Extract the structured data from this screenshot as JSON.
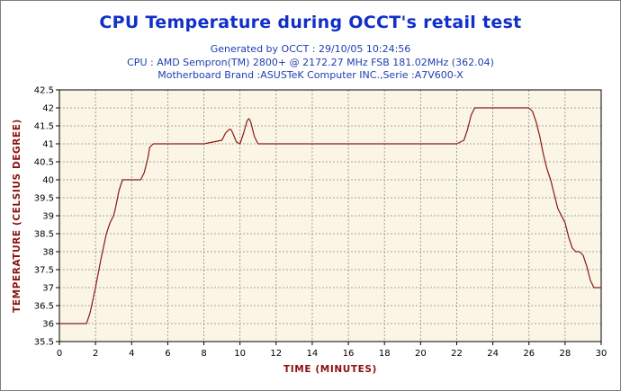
{
  "header": {
    "title": "CPU Temperature during OCCT's retail test",
    "generated": "Generated by OCCT : 29/10/05 10:24:56",
    "cpu": "CPU : AMD Sempron(TM) 2800+ @ 2172.27 MHz FSB 181.02MHz (362.04)",
    "motherboard": "Motherboard Brand :ASUSTeK Computer INC.,Serie :A7V600-X"
  },
  "colors": {
    "plot_background": "#faf5e4",
    "grid": "#8a8a8a",
    "line": "#8b1a1a",
    "title": "#1030c8",
    "axis_label": "#8b1010"
  },
  "chart_data": {
    "type": "line",
    "title": "CPU Temperature during OCCT's retail test",
    "xlabel": "TIME (MINUTES)",
    "ylabel": "TEMPERATURE (CELSIUS DEGREE)",
    "xlim": [
      0,
      30
    ],
    "ylim": [
      35.5,
      42.5
    ],
    "xticks": [
      0,
      2,
      4,
      6,
      8,
      10,
      12,
      14,
      16,
      18,
      20,
      22,
      24,
      26,
      28,
      30
    ],
    "yticks": [
      35.5,
      36,
      36.5,
      37,
      37.5,
      38,
      38.5,
      39,
      39.5,
      40,
      40.5,
      41,
      41.5,
      42,
      42.5
    ],
    "grid": true,
    "grid_style": "dashed",
    "series": [
      {
        "name": "",
        "x": [
          0,
          1.5,
          1.7,
          2.0,
          2.3,
          2.6,
          2.8,
          3.0,
          3.1,
          3.3,
          3.5,
          3.8,
          4.5,
          4.7,
          4.9,
          5.0,
          5.2,
          5.4,
          6.0,
          8.0,
          9.0,
          9.2,
          9.4,
          9.5,
          9.6,
          9.8,
          10.0,
          10.2,
          10.4,
          10.5,
          10.6,
          10.8,
          11.0,
          11.2,
          12.0,
          20.0,
          22.0,
          22.4,
          22.6,
          22.8,
          23.0,
          26.0,
          26.2,
          26.4,
          26.6,
          26.8,
          27.0,
          27.2,
          27.4,
          27.6,
          27.8,
          28.0,
          28.2,
          28.4,
          28.6,
          28.8,
          29.0,
          29.2,
          29.4,
          29.6,
          30.0
        ],
        "y": [
          36.0,
          36.0,
          36.3,
          37.0,
          37.8,
          38.5,
          38.8,
          39.0,
          39.2,
          39.7,
          40.0,
          40.0,
          40.0,
          40.2,
          40.6,
          40.9,
          41.0,
          41.0,
          41.0,
          41.0,
          41.1,
          41.3,
          41.4,
          41.4,
          41.3,
          41.05,
          41.0,
          41.3,
          41.65,
          41.7,
          41.6,
          41.2,
          41.0,
          41.0,
          41.0,
          41.0,
          41.0,
          41.1,
          41.4,
          41.8,
          42.0,
          42.0,
          41.9,
          41.6,
          41.2,
          40.7,
          40.3,
          40.0,
          39.6,
          39.2,
          39.0,
          38.8,
          38.4,
          38.1,
          38.0,
          38.0,
          37.9,
          37.6,
          37.2,
          37.0,
          37.0
        ]
      }
    ]
  }
}
